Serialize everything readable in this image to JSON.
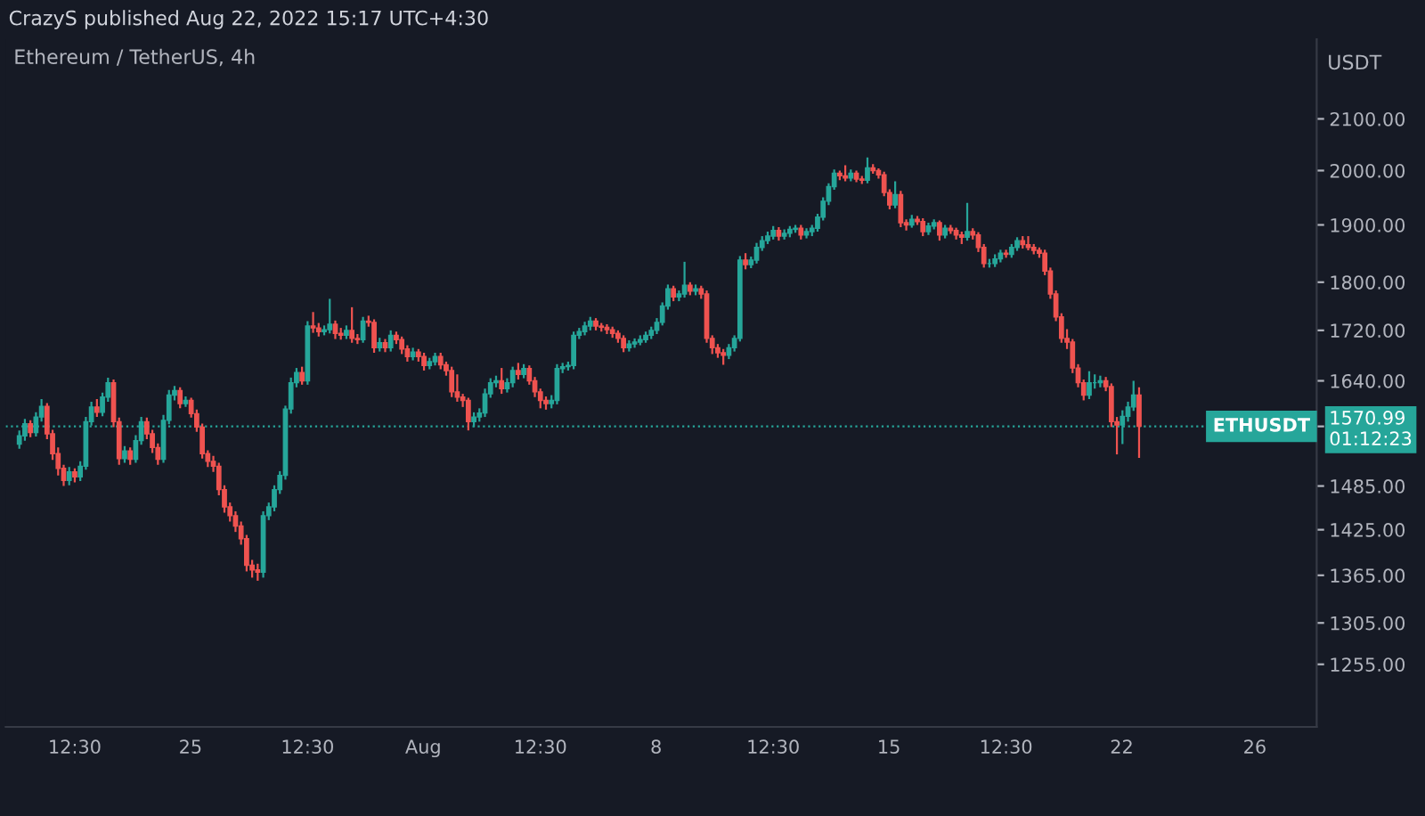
{
  "chart_data": {
    "type": "candlestick",
    "title": "Ethereum / TetherUS, 4h",
    "ylabel": "USDT",
    "annotations": [
      "CrazyS published Aug 22, 2022 15:17 UTC+4:30"
    ],
    "x": [
      "2022-07-19T20:30",
      "2022-07-20T00:30",
      "2022-07-20T04:30",
      "2022-07-20T08:30",
      "2022-07-20T12:30",
      "2022-07-20T16:30",
      "2022-07-20T20:30",
      "2022-07-21T00:30",
      "2022-07-21T04:30",
      "2022-07-21T08:30",
      "2022-07-21T12:30",
      "2022-07-21T16:30",
      "2022-07-21T20:30",
      "2022-07-22T00:30",
      "2022-07-22T04:30",
      "2022-07-22T08:30",
      "2022-07-22T12:30",
      "2022-07-22T16:30",
      "2022-07-22T20:30",
      "2022-07-23T00:30",
      "2022-07-23T04:30",
      "2022-07-23T08:30",
      "2022-07-23T12:30",
      "2022-07-23T16:30",
      "2022-07-23T20:30",
      "2022-07-24T00:30",
      "2022-07-24T04:30",
      "2022-07-24T08:30",
      "2022-07-24T12:30",
      "2022-07-24T16:30",
      "2022-07-24T20:30",
      "2022-07-25T00:30",
      "2022-07-25T04:30",
      "2022-07-25T08:30",
      "2022-07-25T12:30",
      "2022-07-25T16:30",
      "2022-07-25T20:30",
      "2022-07-26T00:30",
      "2022-07-26T04:30",
      "2022-07-26T08:30",
      "2022-07-26T12:30",
      "2022-07-26T16:30",
      "2022-07-26T20:30",
      "2022-07-27T00:30",
      "2022-07-27T04:30",
      "2022-07-27T08:30",
      "2022-07-27T12:30",
      "2022-07-27T16:30",
      "2022-07-27T20:30",
      "2022-07-28T00:30",
      "2022-07-28T04:30",
      "2022-07-28T08:30",
      "2022-07-28T12:30",
      "2022-07-28T16:30",
      "2022-07-28T20:30",
      "2022-07-29T00:30",
      "2022-07-29T04:30",
      "2022-07-29T08:30",
      "2022-07-29T12:30",
      "2022-07-29T16:30",
      "2022-07-29T20:30",
      "2022-07-30T00:30",
      "2022-07-30T04:30",
      "2022-07-30T08:30",
      "2022-07-30T12:30",
      "2022-07-30T16:30",
      "2022-07-30T20:30",
      "2022-07-31T00:30",
      "2022-07-31T04:30",
      "2022-07-31T08:30",
      "2022-07-31T12:30",
      "2022-07-31T16:30",
      "2022-07-31T20:30",
      "2022-08-01T00:30",
      "2022-08-01T04:30",
      "2022-08-01T08:30",
      "2022-08-01T12:30",
      "2022-08-01T16:30",
      "2022-08-01T20:30",
      "2022-08-02T00:30",
      "2022-08-02T04:30",
      "2022-08-02T08:30",
      "2022-08-02T12:30",
      "2022-08-02T16:30",
      "2022-08-02T20:30",
      "2022-08-03T00:30",
      "2022-08-03T04:30",
      "2022-08-03T08:30",
      "2022-08-03T12:30",
      "2022-08-03T16:30",
      "2022-08-03T20:30",
      "2022-08-04T00:30",
      "2022-08-04T04:30",
      "2022-08-04T08:30",
      "2022-08-04T12:30",
      "2022-08-04T16:30",
      "2022-08-04T20:30",
      "2022-08-05T00:30",
      "2022-08-05T04:30",
      "2022-08-05T08:30",
      "2022-08-05T12:30",
      "2022-08-05T16:30",
      "2022-08-05T20:30",
      "2022-08-06T00:30",
      "2022-08-06T04:30",
      "2022-08-06T08:30",
      "2022-08-06T12:30",
      "2022-08-06T16:30",
      "2022-08-06T20:30",
      "2022-08-07T00:30",
      "2022-08-07T04:30",
      "2022-08-07T08:30",
      "2022-08-07T12:30",
      "2022-08-07T16:30",
      "2022-08-07T20:30",
      "2022-08-08T00:30",
      "2022-08-08T04:30",
      "2022-08-08T08:30",
      "2022-08-08T12:30",
      "2022-08-08T16:30",
      "2022-08-08T20:30",
      "2022-08-09T00:30",
      "2022-08-09T04:30",
      "2022-08-09T08:30",
      "2022-08-09T12:30",
      "2022-08-09T16:30",
      "2022-08-09T20:30",
      "2022-08-10T00:30",
      "2022-08-10T04:30",
      "2022-08-10T08:30",
      "2022-08-10T12:30",
      "2022-08-10T16:30",
      "2022-08-10T20:30",
      "2022-08-11T00:30",
      "2022-08-11T04:30",
      "2022-08-11T08:30",
      "2022-08-11T12:30",
      "2022-08-11T16:30",
      "2022-08-11T20:30",
      "2022-08-12T00:30",
      "2022-08-12T04:30",
      "2022-08-12T08:30",
      "2022-08-12T12:30",
      "2022-08-12T16:30",
      "2022-08-12T20:30",
      "2022-08-13T00:30",
      "2022-08-13T04:30",
      "2022-08-13T08:30",
      "2022-08-13T12:30",
      "2022-08-13T16:30",
      "2022-08-13T20:30",
      "2022-08-14T00:30",
      "2022-08-14T04:30",
      "2022-08-14T08:30",
      "2022-08-14T12:30",
      "2022-08-14T16:30",
      "2022-08-14T20:30",
      "2022-08-15T00:30",
      "2022-08-15T04:30",
      "2022-08-15T08:30",
      "2022-08-15T12:30",
      "2022-08-15T16:30",
      "2022-08-15T20:30",
      "2022-08-16T00:30",
      "2022-08-16T04:30",
      "2022-08-16T08:30",
      "2022-08-16T12:30",
      "2022-08-16T16:30",
      "2022-08-16T20:30",
      "2022-08-17T00:30",
      "2022-08-17T04:30",
      "2022-08-17T08:30",
      "2022-08-17T12:30",
      "2022-08-17T16:30",
      "2022-08-17T20:30",
      "2022-08-18T00:30",
      "2022-08-18T04:30",
      "2022-08-18T08:30",
      "2022-08-18T12:30",
      "2022-08-18T16:30",
      "2022-08-18T20:30",
      "2022-08-19T00:30",
      "2022-08-19T04:30",
      "2022-08-19T08:30",
      "2022-08-19T12:30",
      "2022-08-19T16:30",
      "2022-08-19T20:30",
      "2022-08-20T00:30",
      "2022-08-20T04:30",
      "2022-08-20T08:30",
      "2022-08-20T12:30",
      "2022-08-20T16:30",
      "2022-08-20T20:30",
      "2022-08-21T00:30",
      "2022-08-21T04:30",
      "2022-08-21T08:30",
      "2022-08-21T12:30",
      "2022-08-21T16:30",
      "2022-08-21T20:30",
      "2022-08-22T00:30",
      "2022-08-22T04:30",
      "2022-08-22T08:30",
      "2022-08-22T12:30"
    ],
    "ohlc": [
      [
        1545,
        1565,
        1538,
        1557
      ],
      [
        1557,
        1582,
        1550,
        1575
      ],
      [
        1575,
        1580,
        1555,
        1562
      ],
      [
        1562,
        1592,
        1556,
        1585
      ],
      [
        1585,
        1612,
        1578,
        1601
      ],
      [
        1601,
        1606,
        1552,
        1560
      ],
      [
        1560,
        1566,
        1522,
        1531
      ],
      [
        1531,
        1540,
        1500,
        1510
      ],
      [
        1510,
        1515,
        1485,
        1493
      ],
      [
        1493,
        1512,
        1486,
        1505
      ],
      [
        1505,
        1510,
        1490,
        1498
      ],
      [
        1498,
        1520,
        1492,
        1513
      ],
      [
        1513,
        1585,
        1508,
        1578
      ],
      [
        1578,
        1608,
        1572,
        1600
      ],
      [
        1600,
        1612,
        1585,
        1592
      ],
      [
        1592,
        1622,
        1586,
        1615
      ],
      [
        1615,
        1645,
        1608,
        1637
      ],
      [
        1637,
        1642,
        1570,
        1578
      ],
      [
        1578,
        1584,
        1515,
        1524
      ],
      [
        1524,
        1542,
        1518,
        1535
      ],
      [
        1535,
        1540,
        1515,
        1523
      ],
      [
        1523,
        1558,
        1518,
        1550
      ],
      [
        1550,
        1585,
        1544,
        1578
      ],
      [
        1578,
        1584,
        1552,
        1560
      ],
      [
        1560,
        1566,
        1532,
        1540
      ],
      [
        1540,
        1546,
        1515,
        1523
      ],
      [
        1523,
        1588,
        1518,
        1580
      ],
      [
        1580,
        1626,
        1574,
        1618
      ],
      [
        1618,
        1632,
        1610,
        1625
      ],
      [
        1625,
        1630,
        1598,
        1605
      ],
      [
        1605,
        1616,
        1600,
        1610
      ],
      [
        1610,
        1614,
        1584,
        1590
      ],
      [
        1590,
        1596,
        1563,
        1570
      ],
      [
        1570,
        1575,
        1524,
        1531
      ],
      [
        1531,
        1536,
        1512,
        1520
      ],
      [
        1520,
        1528,
        1505,
        1513
      ],
      [
        1513,
        1518,
        1472,
        1480
      ],
      [
        1480,
        1486,
        1448,
        1456
      ],
      [
        1456,
        1462,
        1436,
        1444
      ],
      [
        1444,
        1450,
        1422,
        1430
      ],
      [
        1430,
        1436,
        1405,
        1413
      ],
      [
        1413,
        1418,
        1370,
        1378
      ],
      [
        1378,
        1385,
        1362,
        1372
      ],
      [
        1372,
        1380,
        1358,
        1369
      ],
      [
        1369,
        1450,
        1362,
        1444
      ],
      [
        1444,
        1462,
        1438,
        1456
      ],
      [
        1456,
        1486,
        1450,
        1480
      ],
      [
        1480,
        1506,
        1474,
        1500
      ],
      [
        1500,
        1602,
        1494,
        1597
      ],
      [
        1597,
        1645,
        1590,
        1637
      ],
      [
        1637,
        1660,
        1630,
        1653
      ],
      [
        1653,
        1662,
        1634,
        1640
      ],
      [
        1640,
        1735,
        1634,
        1727
      ],
      [
        1727,
        1750,
        1716,
        1724
      ],
      [
        1724,
        1732,
        1710,
        1718
      ],
      [
        1718,
        1728,
        1712,
        1721
      ],
      [
        1721,
        1772,
        1715,
        1730
      ],
      [
        1730,
        1736,
        1706,
        1715
      ],
      [
        1715,
        1724,
        1705,
        1712
      ],
      [
        1712,
        1728,
        1706,
        1720
      ],
      [
        1720,
        1758,
        1700,
        1707
      ],
      [
        1707,
        1714,
        1698,
        1705
      ],
      [
        1705,
        1742,
        1700,
        1735
      ],
      [
        1735,
        1744,
        1726,
        1733
      ],
      [
        1733,
        1738,
        1684,
        1692
      ],
      [
        1692,
        1708,
        1686,
        1700
      ],
      [
        1700,
        1706,
        1685,
        1692
      ],
      [
        1692,
        1720,
        1686,
        1712
      ],
      [
        1712,
        1718,
        1698,
        1705
      ],
      [
        1705,
        1710,
        1682,
        1690
      ],
      [
        1690,
        1696,
        1670,
        1678
      ],
      [
        1678,
        1692,
        1672,
        1685
      ],
      [
        1685,
        1690,
        1670,
        1678
      ],
      [
        1678,
        1684,
        1656,
        1664
      ],
      [
        1664,
        1676,
        1658,
        1670
      ],
      [
        1670,
        1684,
        1664,
        1678
      ],
      [
        1678,
        1684,
        1658,
        1665
      ],
      [
        1665,
        1670,
        1648,
        1656
      ],
      [
        1656,
        1662,
        1615,
        1623
      ],
      [
        1623,
        1650,
        1608,
        1615
      ],
      [
        1615,
        1620,
        1600,
        1610
      ],
      [
        1610,
        1614,
        1565,
        1578
      ],
      [
        1578,
        1592,
        1570,
        1585
      ],
      [
        1585,
        1598,
        1578,
        1591
      ],
      [
        1591,
        1628,
        1585,
        1620
      ],
      [
        1620,
        1644,
        1614,
        1637
      ],
      [
        1637,
        1648,
        1630,
        1640
      ],
      [
        1640,
        1660,
        1620,
        1628
      ],
      [
        1628,
        1644,
        1622,
        1637
      ],
      [
        1637,
        1662,
        1630,
        1656
      ],
      [
        1656,
        1668,
        1642,
        1650
      ],
      [
        1650,
        1666,
        1644,
        1659
      ],
      [
        1659,
        1664,
        1634,
        1640
      ],
      [
        1640,
        1646,
        1615,
        1623
      ],
      [
        1623,
        1628,
        1598,
        1610
      ],
      [
        1610,
        1616,
        1596,
        1605
      ],
      [
        1605,
        1618,
        1598,
        1610
      ],
      [
        1610,
        1666,
        1604,
        1659
      ],
      [
        1659,
        1668,
        1652,
        1662
      ],
      [
        1662,
        1670,
        1656,
        1664
      ],
      [
        1664,
        1718,
        1658,
        1712
      ],
      [
        1712,
        1724,
        1706,
        1718
      ],
      [
        1718,
        1734,
        1712,
        1727
      ],
      [
        1727,
        1742,
        1720,
        1735
      ],
      [
        1735,
        1740,
        1720,
        1727
      ],
      [
        1727,
        1732,
        1718,
        1725
      ],
      [
        1725,
        1730,
        1714,
        1721
      ],
      [
        1721,
        1726,
        1708,
        1715
      ],
      [
        1715,
        1720,
        1700,
        1707
      ],
      [
        1707,
        1712,
        1685,
        1692
      ],
      [
        1692,
        1704,
        1686,
        1698
      ],
      [
        1698,
        1707,
        1692,
        1701
      ],
      [
        1701,
        1712,
        1696,
        1705
      ],
      [
        1705,
        1718,
        1700,
        1712
      ],
      [
        1712,
        1726,
        1706,
        1720
      ],
      [
        1720,
        1740,
        1714,
        1733
      ],
      [
        1733,
        1766,
        1728,
        1760
      ],
      [
        1760,
        1796,
        1754,
        1789
      ],
      [
        1789,
        1794,
        1768,
        1775
      ],
      [
        1775,
        1786,
        1768,
        1780
      ],
      [
        1780,
        1835,
        1774,
        1795
      ],
      [
        1795,
        1800,
        1778,
        1785
      ],
      [
        1785,
        1796,
        1778,
        1789
      ],
      [
        1789,
        1794,
        1772,
        1780
      ],
      [
        1780,
        1786,
        1700,
        1707
      ],
      [
        1707,
        1712,
        1682,
        1692
      ],
      [
        1692,
        1698,
        1676,
        1684
      ],
      [
        1684,
        1690,
        1665,
        1680
      ],
      [
        1680,
        1698,
        1674,
        1692
      ],
      [
        1692,
        1712,
        1686,
        1707
      ],
      [
        1707,
        1845,
        1702,
        1838
      ],
      [
        1838,
        1850,
        1822,
        1830
      ],
      [
        1830,
        1844,
        1824,
        1838
      ],
      [
        1838,
        1868,
        1832,
        1860
      ],
      [
        1860,
        1880,
        1854,
        1872
      ],
      [
        1872,
        1888,
        1866,
        1880
      ],
      [
        1880,
        1898,
        1874,
        1890
      ],
      [
        1890,
        1896,
        1872,
        1880
      ],
      [
        1880,
        1892,
        1874,
        1885
      ],
      [
        1885,
        1898,
        1878,
        1892
      ],
      [
        1892,
        1900,
        1886,
        1894
      ],
      [
        1894,
        1900,
        1874,
        1882
      ],
      [
        1882,
        1894,
        1876,
        1888
      ],
      [
        1888,
        1900,
        1880,
        1894
      ],
      [
        1894,
        1920,
        1888,
        1914
      ],
      [
        1914,
        1950,
        1908,
        1943
      ],
      [
        1943,
        1976,
        1936,
        1970
      ],
      [
        1970,
        2002,
        1964,
        1995
      ],
      [
        1995,
        2000,
        1982,
        1990
      ],
      [
        1990,
        2010,
        1980,
        1986
      ],
      [
        1986,
        2002,
        1980,
        1995
      ],
      [
        1995,
        2000,
        1978,
        1984
      ],
      [
        1984,
        1990,
        1975,
        1982
      ],
      [
        1982,
        2025,
        1976,
        2005
      ],
      [
        2005,
        2012,
        1994,
        2000
      ],
      [
        2000,
        2004,
        1985,
        1992
      ],
      [
        1992,
        1998,
        1952,
        1959
      ],
      [
        1959,
        1965,
        1928,
        1936
      ],
      [
        1936,
        1980,
        1930,
        1955
      ],
      [
        1955,
        1962,
        1896,
        1904
      ],
      [
        1904,
        1910,
        1890,
        1900
      ],
      [
        1900,
        1918,
        1895,
        1910
      ],
      [
        1910,
        1916,
        1900,
        1906
      ],
      [
        1906,
        1912,
        1880,
        1888
      ],
      [
        1888,
        1904,
        1882,
        1898
      ],
      [
        1898,
        1910,
        1892,
        1904
      ],
      [
        1904,
        1908,
        1872,
        1882
      ],
      [
        1882,
        1900,
        1876,
        1894
      ],
      [
        1894,
        1900,
        1884,
        1890
      ],
      [
        1890,
        1895,
        1874,
        1882
      ],
      [
        1882,
        1888,
        1866,
        1878
      ],
      [
        1878,
        1940,
        1872,
        1888
      ],
      [
        1888,
        1894,
        1874,
        1882
      ],
      [
        1882,
        1887,
        1852,
        1860
      ],
      [
        1860,
        1866,
        1825,
        1832
      ],
      [
        1832,
        1840,
        1825,
        1832
      ],
      [
        1832,
        1848,
        1826,
        1840
      ],
      [
        1840,
        1856,
        1834,
        1850
      ],
      [
        1850,
        1856,
        1842,
        1848
      ],
      [
        1848,
        1866,
        1842,
        1860
      ],
      [
        1860,
        1878,
        1854,
        1872
      ],
      [
        1872,
        1880,
        1858,
        1865
      ],
      [
        1865,
        1880,
        1855,
        1860
      ],
      [
        1860,
        1866,
        1848,
        1855
      ],
      [
        1855,
        1860,
        1842,
        1850
      ],
      [
        1850,
        1856,
        1812,
        1819
      ],
      [
        1819,
        1825,
        1772,
        1780
      ],
      [
        1780,
        1786,
        1735,
        1742
      ],
      [
        1742,
        1748,
        1700,
        1707
      ],
      [
        1707,
        1722,
        1690,
        1701
      ],
      [
        1701,
        1706,
        1652,
        1660
      ],
      [
        1660,
        1666,
        1630,
        1637
      ],
      [
        1637,
        1642,
        1610,
        1618
      ],
      [
        1618,
        1655,
        1612,
        1637
      ],
      [
        1637,
        1650,
        1628,
        1637
      ],
      [
        1637,
        1648,
        1630,
        1640
      ],
      [
        1640,
        1646,
        1624,
        1631
      ],
      [
        1631,
        1636,
        1570,
        1578
      ],
      [
        1578,
        1585,
        1530,
        1573
      ],
      [
        1573,
        1595,
        1545,
        1586
      ],
      [
        1586,
        1608,
        1578,
        1600
      ],
      [
        1600,
        1640,
        1594,
        1618
      ],
      [
        1618,
        1630,
        1525,
        1570.99
      ]
    ],
    "log": true,
    "ylim": [
      1183,
      2264
    ],
    "yticks": [
      {
        "value": 1255,
        "label": "1255.00"
      },
      {
        "value": 1305,
        "label": "1305.00"
      },
      {
        "value": 1365,
        "label": "1365.00"
      },
      {
        "value": 1425,
        "label": "1425.00"
      },
      {
        "value": 1485,
        "label": "1485.00"
      },
      {
        "value": 1570.99,
        "label": "1570.99\n01:12:23"
      },
      {
        "value": 1640,
        "label": "1640.00"
      },
      {
        "value": 1720,
        "label": "1720.00"
      },
      {
        "value": 1800,
        "label": "1800.00"
      },
      {
        "value": 1900,
        "label": "1900.00"
      },
      {
        "value": 2000,
        "label": "2000.00"
      },
      {
        "value": 2100,
        "label": "2100.00"
      }
    ],
    "xlim": [
      "2022-07-19T10:40",
      "2022-08-27T20:40"
    ],
    "xticks": [
      {
        "value": "2022-07-21T12:30",
        "label": "12:30"
      },
      {
        "value": "2022-07-25",
        "label": "25"
      },
      {
        "value": "2022-07-28T12:30",
        "label": "12:30"
      },
      {
        "value": "2022-08-01",
        "label": "Aug"
      },
      {
        "value": "2022-08-04T12:30",
        "label": "12:30"
      },
      {
        "value": "2022-08-08",
        "label": "8"
      },
      {
        "value": "2022-08-11T12:30",
        "label": "12:30"
      },
      {
        "value": "2022-08-15",
        "label": "15"
      },
      {
        "value": "2022-08-18T12:30",
        "label": "12:30"
      },
      {
        "value": "2022-08-22",
        "label": "22"
      },
      {
        "value": "2022-08-26",
        "label": "26"
      }
    ],
    "ref_lines": [
      {
        "axis": "y",
        "value": 1570.99,
        "label": "ETHUSDT",
        "color": "#26a69a",
        "line_style": "dotted"
      }
    ]
  }
}
